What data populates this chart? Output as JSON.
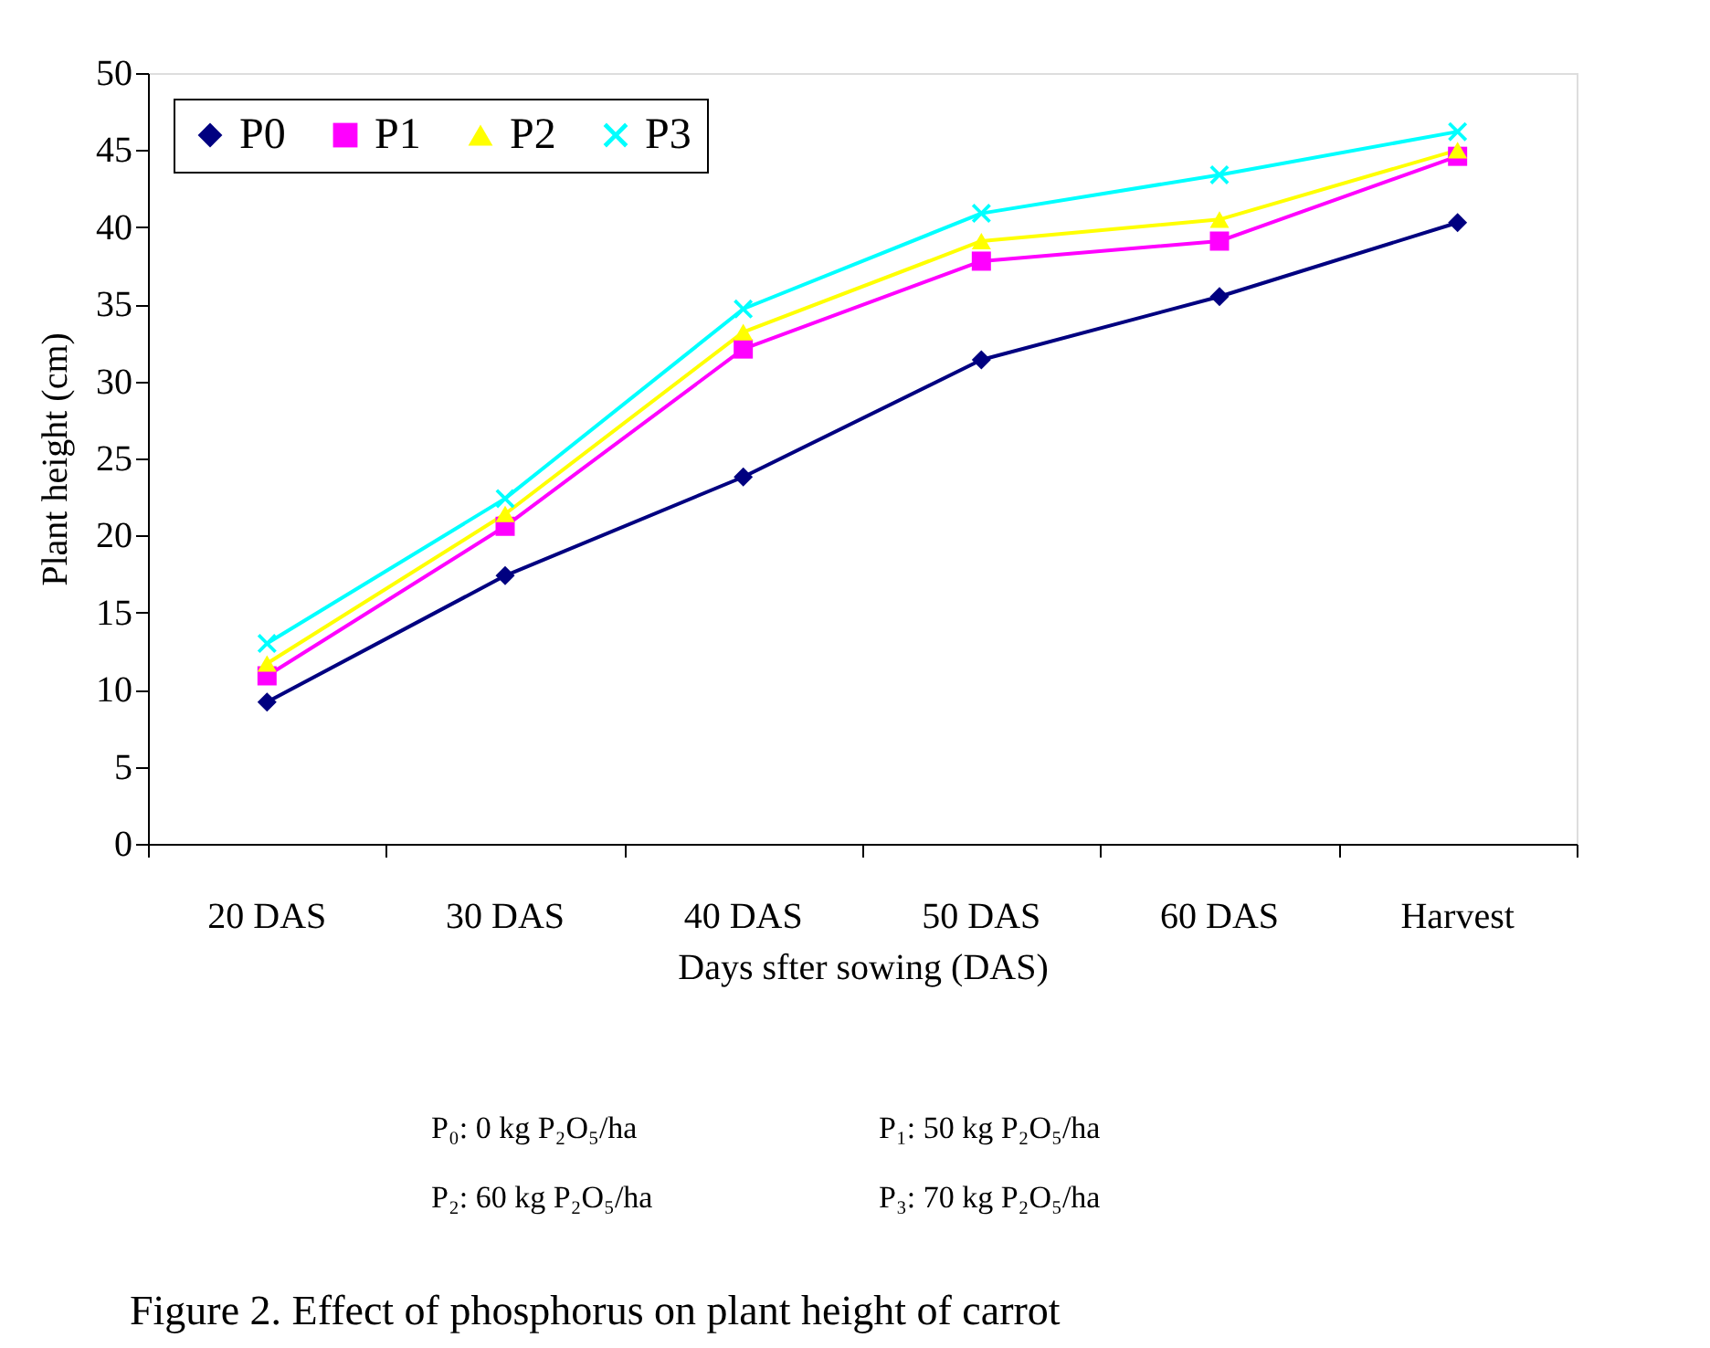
{
  "chart_data": {
    "type": "line",
    "xlabel": "Days sfter sowing (DAS)",
    "ylabel": "Plant height (cm)",
    "categories": [
      "20 DAS",
      "30 DAS",
      "40 DAS",
      "50 DAS",
      "60 DAS",
      "Harvest"
    ],
    "series": [
      {
        "name": "P0",
        "color": "#000080",
        "marker": "diamond",
        "values": [
          9.2,
          17.4,
          23.8,
          31.4,
          35.5,
          40.3
        ]
      },
      {
        "name": "P1",
        "color": "#ff00ff",
        "marker": "square",
        "values": [
          10.9,
          20.6,
          32.1,
          37.8,
          39.1,
          44.6
        ]
      },
      {
        "name": "P2",
        "color": "#ffff00",
        "marker": "triangle",
        "values": [
          11.7,
          21.4,
          33.2,
          39.1,
          40.5,
          45.0
        ]
      },
      {
        "name": "P3",
        "color": "#00ffff",
        "marker": "cross",
        "values": [
          13.0,
          22.4,
          34.7,
          40.9,
          43.4,
          46.2
        ]
      }
    ],
    "ylim": [
      0,
      50
    ],
    "yticks": [
      0,
      5,
      10,
      15,
      20,
      25,
      30,
      35,
      40,
      45,
      50
    ],
    "grid": false,
    "legend": "top left",
    "line_style": "solid",
    "annotations": [
      "P₀: 0 kg P₂O₅/ha",
      "P₁: 50 kg P₂O₅/ha",
      "P₂: 60 kg P₂O₅/ha",
      "P₃: 70 kg P₂O₅/ha",
      "Figure 2. Effect of phosphorus on plant height of carrot"
    ]
  }
}
